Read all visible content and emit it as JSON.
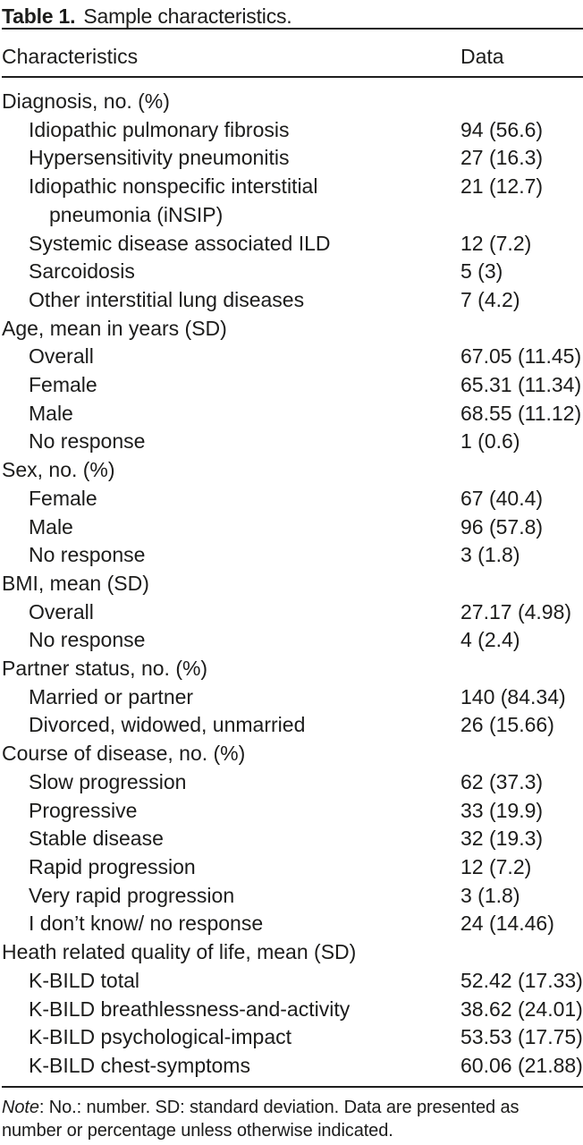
{
  "table": {
    "title_label": "Table 1.",
    "title_text": "Sample characteristics.",
    "columns": {
      "characteristics": "Characteristics",
      "data": "Data"
    },
    "rows": [
      {
        "label": "Diagnosis, no. (%)",
        "indent": 0,
        "value": ""
      },
      {
        "label": "Idiopathic pulmonary fibrosis",
        "indent": 1,
        "value": "94 (56.6)"
      },
      {
        "label": "Hypersensitivity pneumonitis",
        "indent": 1,
        "value": "27 (16.3)"
      },
      {
        "label": "Idiopathic nonspecific interstitial",
        "label_cont": "pneumonia (iNSIP)",
        "indent": 1,
        "value": "21 (12.7)"
      },
      {
        "label": "Systemic disease associated ILD",
        "indent": 1,
        "value": "12 (7.2)"
      },
      {
        "label": "Sarcoidosis",
        "indent": 1,
        "value": "5 (3)"
      },
      {
        "label": "Other interstitial lung diseases",
        "indent": 1,
        "value": "7 (4.2)"
      },
      {
        "label": "Age, mean in years (SD)",
        "indent": 0,
        "value": ""
      },
      {
        "label": "Overall",
        "indent": 1,
        "value": "67.05 (11.45)"
      },
      {
        "label": "Female",
        "indent": 1,
        "value": "65.31 (11.34)"
      },
      {
        "label": "Male",
        "indent": 1,
        "value": "68.55 (11.12)"
      },
      {
        "label": "No response",
        "indent": 1,
        "value": "1 (0.6)"
      },
      {
        "label": "Sex, no. (%)",
        "indent": 0,
        "value": ""
      },
      {
        "label": "Female",
        "indent": 1,
        "value": "67 (40.4)"
      },
      {
        "label": "Male",
        "indent": 1,
        "value": "96 (57.8)"
      },
      {
        "label": "No response",
        "indent": 1,
        "value": "3 (1.8)"
      },
      {
        "label": "BMI, mean (SD)",
        "indent": 0,
        "value": ""
      },
      {
        "label": "Overall",
        "indent": 1,
        "value": "27.17 (4.98)"
      },
      {
        "label": "No response",
        "indent": 1,
        "value": "4 (2.4)"
      },
      {
        "label": "Partner status, no. (%)",
        "indent": 0,
        "value": ""
      },
      {
        "label": "Married or partner",
        "indent": 1,
        "value": "140 (84.34)"
      },
      {
        "label": "Divorced, widowed, unmarried",
        "indent": 1,
        "value": "26 (15.66)"
      },
      {
        "label": "Course of disease, no. (%)",
        "indent": 0,
        "value": ""
      },
      {
        "label": "Slow progression",
        "indent": 1,
        "value": "62 (37.3)"
      },
      {
        "label": "Progressive",
        "indent": 1,
        "value": "33 (19.9)"
      },
      {
        "label": "Stable disease",
        "indent": 1,
        "value": "32 (19.3)"
      },
      {
        "label": "Rapid progression",
        "indent": 1,
        "value": "12 (7.2)"
      },
      {
        "label": "Very rapid progression",
        "indent": 1,
        "value": "3 (1.8)"
      },
      {
        "label": "I don’t know/ no response",
        "indent": 1,
        "value": "24 (14.46)"
      },
      {
        "label": "Heath related quality of life, mean (SD)",
        "indent": 0,
        "value": ""
      },
      {
        "label": "K-BILD total",
        "indent": 1,
        "value": "52.42 (17.33)"
      },
      {
        "label": "K-BILD breathlessness-and-activity",
        "indent": 1,
        "value": "38.62 (24.01)"
      },
      {
        "label": "K-BILD psychological-impact",
        "indent": 1,
        "value": "53.53 (17.75)"
      },
      {
        "label": "K-BILD chest-symptoms",
        "indent": 1,
        "value": "60.06 (21.88)"
      }
    ],
    "note": {
      "label": "Note",
      "text": ": No.: number. SD: standard deviation. Data are presented as number or percentage unless otherwise indicated."
    },
    "colors": {
      "text": "#1c1c1b",
      "background": "#ffffff",
      "rule": "#1e1e1e"
    }
  }
}
